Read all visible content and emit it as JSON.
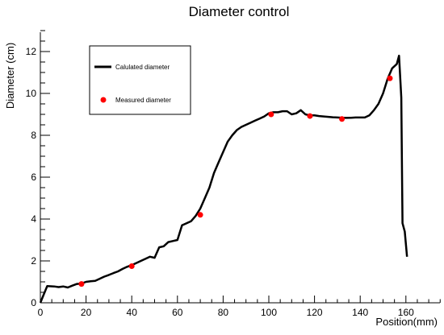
{
  "chart_data": {
    "type": "line",
    "title": "Diameter control",
    "xlabel": "Position(mm)",
    "ylabel": "Diameter (cm)",
    "xlim": [
      0,
      178
    ],
    "ylim": [
      0,
      13
    ],
    "xticks": [
      0,
      20,
      40,
      60,
      80,
      100,
      120,
      140,
      160
    ],
    "yticks": [
      0,
      2,
      4,
      6,
      8,
      10,
      12
    ],
    "grid": false,
    "legend_position": "top-left",
    "series": [
      {
        "name": "Calulated diameter",
        "kind": "line",
        "color": "#000000",
        "x": [
          0,
          1.5,
          3,
          6,
          8,
          10,
          12,
          14,
          16,
          18,
          20,
          22,
          24,
          26,
          28,
          30,
          32,
          34,
          36,
          38,
          40,
          42,
          44,
          46,
          48,
          50,
          52,
          54,
          56,
          58,
          60,
          62,
          64,
          66,
          68,
          70,
          72,
          74,
          76,
          78,
          80,
          82,
          84,
          86,
          88,
          90,
          92,
          94,
          96,
          98,
          100,
          102,
          104,
          106,
          108,
          110,
          112,
          114,
          116,
          118,
          120,
          122,
          124,
          126,
          128,
          130,
          132,
          134,
          136,
          138,
          140,
          142,
          144,
          146,
          148,
          150,
          152,
          154,
          156,
          157,
          158,
          158.5,
          159.5,
          160.5
        ],
        "y": [
          0,
          0.4,
          0.8,
          0.78,
          0.75,
          0.78,
          0.73,
          0.82,
          0.9,
          0.92,
          1.0,
          1.03,
          1.05,
          1.15,
          1.25,
          1.33,
          1.42,
          1.5,
          1.62,
          1.72,
          1.8,
          1.9,
          2.0,
          2.1,
          2.2,
          2.15,
          2.65,
          2.7,
          2.9,
          2.95,
          3.0,
          3.7,
          3.8,
          3.9,
          4.15,
          4.5,
          5.0,
          5.5,
          6.2,
          6.7,
          7.2,
          7.7,
          8.0,
          8.25,
          8.4,
          8.5,
          8.6,
          8.7,
          8.8,
          8.9,
          9.05,
          9.1,
          9.1,
          9.15,
          9.15,
          9.0,
          9.05,
          9.2,
          9.0,
          8.95,
          8.95,
          8.92,
          8.9,
          8.88,
          8.86,
          8.85,
          8.84,
          8.83,
          8.84,
          8.85,
          8.85,
          8.85,
          8.95,
          9.2,
          9.5,
          10.0,
          10.7,
          11.2,
          11.4,
          11.8,
          9.8,
          3.8,
          3.4,
          2.2
        ]
      },
      {
        "name": "Measured diameter",
        "kind": "scatter",
        "color": "#ff0000",
        "x": [
          18,
          40,
          70,
          101,
          118,
          132,
          153
        ],
        "y": [
          0.9,
          1.75,
          4.2,
          9.0,
          8.92,
          8.78,
          10.72
        ]
      }
    ]
  }
}
